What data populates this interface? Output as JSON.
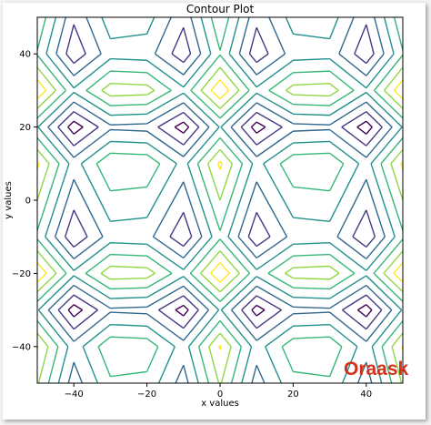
{
  "chart_data": {
    "type": "contour",
    "title": "Contour Plot",
    "xlabel": "x values",
    "ylabel": "y values",
    "xlim": [
      -50,
      50
    ],
    "ylim": [
      -50,
      50
    ],
    "xticks": [
      -40,
      -20,
      0,
      20,
      40
    ],
    "yticks": [
      -40,
      -20,
      0,
      20,
      40
    ],
    "colormap": "viridis",
    "grid": false,
    "function": "cos(x/4) + sin(y/4)",
    "grid_points": 11,
    "levels": [
      -1.5,
      -1.0,
      -0.5,
      0.0,
      0.5,
      1.0,
      1.5
    ],
    "colors": [
      "#440154",
      "#443983",
      "#31688e",
      "#21918c",
      "#35b779",
      "#90d743",
      "#fde725"
    ]
  },
  "watermark": "Oraask"
}
